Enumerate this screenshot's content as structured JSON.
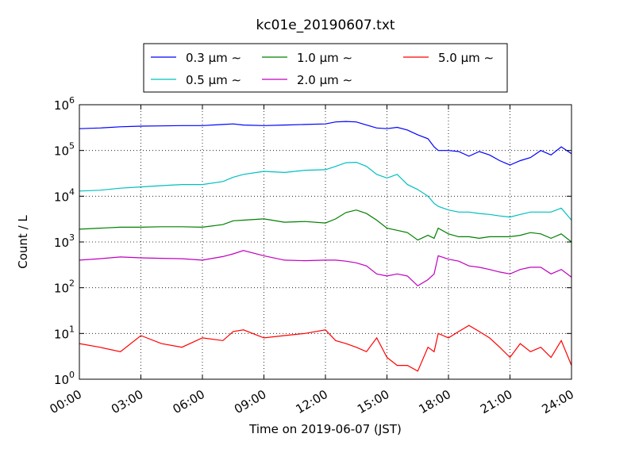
{
  "chart_data": {
    "type": "line",
    "title": "kc01e_20190607.txt",
    "xlabel": "Time on 2019-06-07 (JST)",
    "ylabel": "Count / L",
    "yscale": "log",
    "ylim": [
      1,
      1000000
    ],
    "x_ticks": [
      "00:00",
      "03:00",
      "06:00",
      "09:00",
      "12:00",
      "15:00",
      "18:00",
      "21:00",
      "24:00"
    ],
    "x_tick_hours": [
      0,
      3,
      6,
      9,
      12,
      15,
      18,
      21,
      24
    ],
    "y_ticks": [
      {
        "value": 1,
        "base": "10",
        "exp": "0"
      },
      {
        "value": 10,
        "base": "10",
        "exp": "1"
      },
      {
        "value": 100,
        "base": "10",
        "exp": "2"
      },
      {
        "value": 1000,
        "base": "10",
        "exp": "3"
      },
      {
        "value": 10000,
        "base": "10",
        "exp": "4"
      },
      {
        "value": 100000,
        "base": "10",
        "exp": "5"
      },
      {
        "value": 1000000,
        "base": "10",
        "exp": "6"
      }
    ],
    "x_hours": [
      0,
      1,
      2,
      3,
      4,
      5,
      6,
      7,
      7.5,
      8,
      9,
      10,
      11,
      12,
      12.5,
      13,
      13.5,
      14,
      14.5,
      15,
      15.5,
      16,
      16.5,
      17,
      17.3,
      17.5,
      18,
      18.5,
      19,
      19.5,
      20,
      20.5,
      21,
      21.5,
      22,
      22.5,
      23,
      23.5,
      24
    ],
    "grid": true,
    "legend_position": "top-center",
    "series": [
      {
        "name": "0.3 μm ∼",
        "color": "#0000ff",
        "values": [
          300000,
          310000,
          330000,
          340000,
          345000,
          350000,
          350000,
          370000,
          380000,
          360000,
          350000,
          360000,
          370000,
          380000,
          420000,
          430000,
          420000,
          360000,
          310000,
          300000,
          320000,
          280000,
          220000,
          180000,
          120000,
          100000,
          100000,
          95000,
          75000,
          95000,
          80000,
          60000,
          48000,
          60000,
          70000,
          100000,
          80000,
          120000,
          85000
        ]
      },
      {
        "name": "0.5 μm ∼",
        "color": "#00bfbf",
        "values": [
          13000,
          13500,
          15000,
          16000,
          17000,
          18000,
          18000,
          21000,
          26000,
          30000,
          35000,
          33000,
          37000,
          38000,
          45000,
          54000,
          55000,
          45000,
          30000,
          25000,
          30000,
          18000,
          14000,
          10000,
          7000,
          6000,
          5000,
          4500,
          4500,
          4200,
          4000,
          3700,
          3500,
          4000,
          4500,
          4500,
          4500,
          5500,
          3000
        ]
      },
      {
        "name": "1.0 μm ∼",
        "color": "#008000",
        "values": [
          1900,
          2000,
          2100,
          2100,
          2150,
          2150,
          2100,
          2400,
          2900,
          3000,
          3200,
          2700,
          2800,
          2600,
          3200,
          4400,
          5000,
          4200,
          3000,
          2000,
          1800,
          1600,
          1100,
          1400,
          1200,
          2000,
          1500,
          1300,
          1300,
          1200,
          1300,
          1300,
          1300,
          1400,
          1600,
          1500,
          1200,
          1500,
          1000
        ]
      },
      {
        "name": "2.0 μm ∼",
        "color": "#bf00bf",
        "values": [
          400,
          430,
          470,
          450,
          440,
          430,
          400,
          480,
          550,
          650,
          500,
          400,
          390,
          400,
          400,
          380,
          350,
          300,
          200,
          180,
          200,
          180,
          110,
          150,
          200,
          500,
          420,
          380,
          300,
          280,
          250,
          220,
          200,
          250,
          280,
          280,
          200,
          250,
          170
        ]
      },
      {
        "name": "5.0 μm ∼",
        "color": "#ff0000",
        "values": [
          6,
          5,
          4,
          9,
          6,
          5,
          8,
          7,
          11,
          12,
          8,
          9,
          10,
          12,
          7,
          6,
          5,
          4,
          8,
          3,
          2,
          2,
          1.5,
          5,
          4,
          10,
          8,
          11,
          15,
          11,
          8,
          5,
          3,
          6,
          4,
          5,
          3,
          7,
          2
        ]
      }
    ]
  }
}
